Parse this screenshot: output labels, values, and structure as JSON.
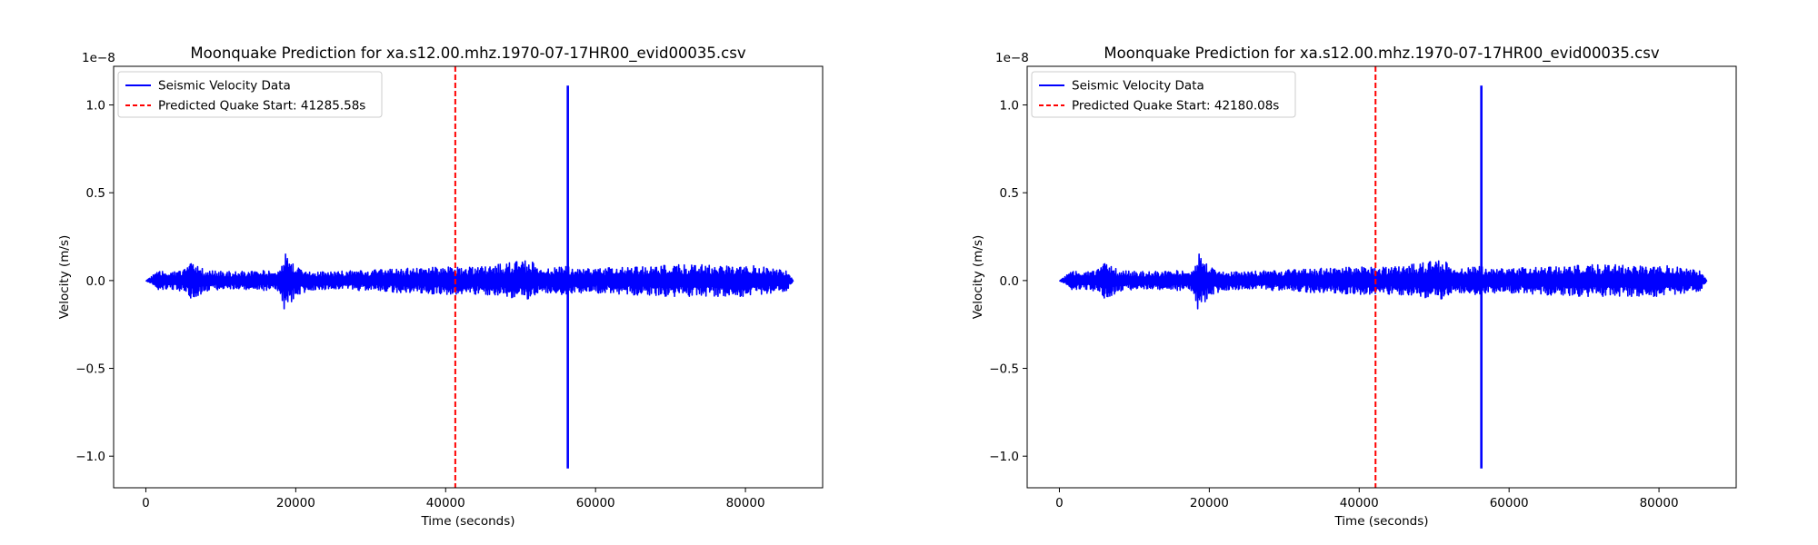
{
  "chart_data": [
    {
      "type": "line",
      "title": "Moonquake Prediction for xa.s12.00.mhz.1970-07-17HR00_evid00035.csv",
      "xlabel": "Time (seconds)",
      "ylabel": "Velocity (m/s)",
      "y_offset_text": "1e−8",
      "y_scale_factor": 1e-08,
      "xlim": [
        -4300,
        90300
      ],
      "ylim": [
        -1.18,
        1.22
      ],
      "xticks": [
        0,
        20000,
        40000,
        60000,
        80000
      ],
      "xtick_labels": [
        "0",
        "20000",
        "40000",
        "60000",
        "80000"
      ],
      "yticks": [
        -1.0,
        -0.5,
        0.0,
        0.5,
        1.0
      ],
      "ytick_labels": [
        "−1.0",
        "−0.5",
        "0.0",
        "0.5",
        "1.0"
      ],
      "grid": false,
      "legend_position": "top-left",
      "series": [
        {
          "name": "Seismic Velocity Data",
          "color": "#0000ff",
          "style": "solid",
          "envelope": {
            "x": [
              0,
              1500,
              5000,
              6000,
              8000,
              12000,
              15000,
              17500,
              18500,
              20000,
              23000,
              30000,
              35000,
              40000,
              45000,
              51500,
              52500,
              55000,
              56300,
              57000,
              60000,
              63500,
              70000,
              80000,
              85500,
              86400
            ],
            "upper": [
              0.0,
              0.05,
              0.06,
              0.1,
              0.06,
              0.05,
              0.06,
              0.05,
              0.17,
              0.08,
              0.05,
              0.06,
              0.07,
              0.08,
              0.08,
              0.12,
              0.06,
              0.08,
              0.08,
              0.07,
              0.07,
              0.08,
              0.09,
              0.09,
              0.06,
              0.0
            ],
            "lower": [
              0.0,
              -0.05,
              -0.06,
              -0.11,
              -0.06,
              -0.05,
              -0.06,
              -0.05,
              -0.18,
              -0.09,
              -0.05,
              -0.06,
              -0.07,
              -0.08,
              -0.08,
              -0.11,
              -0.06,
              -0.08,
              -0.08,
              -0.07,
              -0.07,
              -0.08,
              -0.09,
              -0.09,
              -0.06,
              0.0
            ]
          },
          "spike": {
            "x": 56300,
            "max": 1.11,
            "min": -1.07
          }
        }
      ],
      "vlines": [
        {
          "name": "Predicted Quake Start: 41285.58s",
          "x": 41285.58,
          "color": "#ff0000",
          "style": "dashed"
        }
      ]
    },
    {
      "type": "line",
      "title": "Moonquake Prediction for xa.s12.00.mhz.1970-07-17HR00_evid00035.csv",
      "xlabel": "Time (seconds)",
      "ylabel": "Velocity (m/s)",
      "y_offset_text": "1e−8",
      "y_scale_factor": 1e-08,
      "xlim": [
        -4300,
        90300
      ],
      "ylim": [
        -1.18,
        1.22
      ],
      "xticks": [
        0,
        20000,
        40000,
        60000,
        80000
      ],
      "xtick_labels": [
        "0",
        "20000",
        "40000",
        "60000",
        "80000"
      ],
      "yticks": [
        -1.0,
        -0.5,
        0.0,
        0.5,
        1.0
      ],
      "ytick_labels": [
        "−1.0",
        "−0.5",
        "0.0",
        "0.5",
        "1.0"
      ],
      "grid": false,
      "legend_position": "top-left",
      "series": [
        {
          "name": "Seismic Velocity Data",
          "color": "#0000ff",
          "style": "solid",
          "envelope": {
            "x": [
              0,
              1500,
              5000,
              6000,
              8000,
              12000,
              15000,
              17500,
              18500,
              20000,
              23000,
              30000,
              35000,
              40000,
              45000,
              51500,
              52500,
              55000,
              56300,
              57000,
              60000,
              63500,
              70000,
              80000,
              85500,
              86400
            ],
            "upper": [
              0.0,
              0.05,
              0.06,
              0.1,
              0.06,
              0.05,
              0.06,
              0.05,
              0.17,
              0.08,
              0.05,
              0.06,
              0.07,
              0.08,
              0.08,
              0.12,
              0.06,
              0.08,
              0.08,
              0.07,
              0.07,
              0.08,
              0.09,
              0.09,
              0.06,
              0.0
            ],
            "lower": [
              0.0,
              -0.05,
              -0.06,
              -0.11,
              -0.06,
              -0.05,
              -0.06,
              -0.05,
              -0.18,
              -0.09,
              -0.05,
              -0.06,
              -0.07,
              -0.08,
              -0.08,
              -0.11,
              -0.06,
              -0.08,
              -0.08,
              -0.07,
              -0.07,
              -0.08,
              -0.09,
              -0.09,
              -0.06,
              0.0
            ]
          },
          "spike": {
            "x": 56300,
            "max": 1.11,
            "min": -1.07
          }
        }
      ],
      "vlines": [
        {
          "name": "Predicted Quake Start: 42180.08s",
          "x": 42180.08,
          "color": "#ff0000",
          "style": "dashed"
        }
      ]
    }
  ]
}
